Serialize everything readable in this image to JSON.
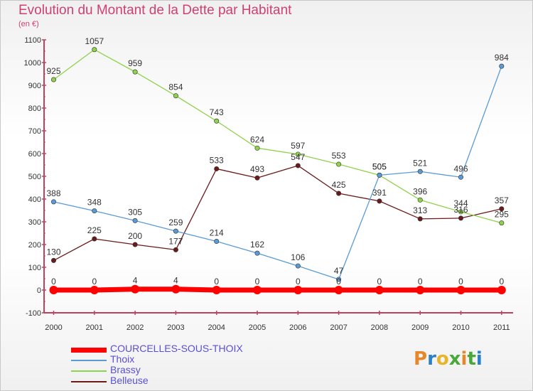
{
  "title": "Evolution du Montant de la Dette par Habitant",
  "unit_label": "(en €)",
  "logo": {
    "letters": [
      "P",
      "r",
      "o",
      "x",
      "i",
      "t",
      "i"
    ],
    "colors": [
      "#e8862a",
      "#2a7fc8",
      "#e8b52a",
      "#4aa83a",
      "#e8862a",
      "#4aa83a",
      "#2a7fc8"
    ]
  },
  "chart_data": {
    "type": "line",
    "title": "Evolution du Montant de la Dette par Habitant",
    "ylabel": "(en €)",
    "x": [
      "2000",
      "2001",
      "2002",
      "2003",
      "2004",
      "2005",
      "2006",
      "2007",
      "2008",
      "2009",
      "2010",
      "2011"
    ],
    "ylim": [
      -100,
      1100
    ],
    "yticks": [
      "-100",
      "0",
      "100",
      "200",
      "300",
      "400",
      "500",
      "600",
      "700",
      "800",
      "900",
      "1000",
      "1100"
    ],
    "grid": false,
    "legend_position": "bottom-left",
    "series": [
      {
        "name": "COURCELLES-SOUS-THOIX",
        "color": "#ff0000",
        "values": [
          0,
          0,
          4,
          4,
          0,
          0,
          0,
          0,
          0,
          0,
          0,
          0
        ],
        "labels": [
          "0",
          "0",
          "4",
          "4",
          "0",
          "0",
          "0",
          "0",
          "0",
          "0",
          "0",
          "0"
        ]
      },
      {
        "name": "Thoix",
        "color": "#5b9bd5",
        "values": [
          388,
          348,
          305,
          259,
          214,
          162,
          106,
          47,
          505,
          521,
          496,
          984
        ],
        "labels": [
          "388",
          "348",
          "305",
          "259",
          "214",
          "162",
          "106",
          "47",
          "505",
          "521",
          "496",
          "984"
        ]
      },
      {
        "name": "Brassy",
        "color": "#8fd34a",
        "values": [
          925,
          1057,
          959,
          854,
          743,
          624,
          597,
          553,
          505,
          396,
          344,
          295
        ],
        "labels": [
          "925",
          "1057",
          "959",
          "854",
          "743",
          "624",
          "597",
          "553",
          "505",
          "396",
          "344",
          "295"
        ]
      },
      {
        "name": "Belleuse",
        "color": "#6b1a1a",
        "values": [
          130,
          225,
          200,
          177,
          533,
          493,
          547,
          425,
          391,
          313,
          316,
          357
        ],
        "labels": [
          "130",
          "225",
          "200",
          "177",
          "533",
          "493",
          "547",
          "425",
          "391",
          "313",
          "316",
          "357"
        ]
      }
    ]
  }
}
